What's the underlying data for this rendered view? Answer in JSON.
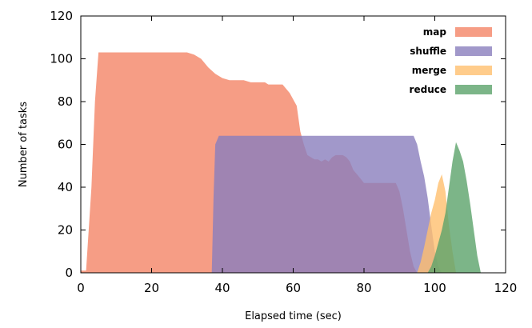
{
  "chart_data": {
    "type": "area",
    "title": "",
    "xlabel": "Elapsed time (sec)",
    "ylabel": "Number of tasks",
    "xlim": [
      0,
      120
    ],
    "ylim": [
      0,
      120
    ],
    "xticks": [
      0,
      20,
      40,
      60,
      80,
      100,
      120
    ],
    "yticks": [
      0,
      20,
      40,
      60,
      80,
      100,
      120
    ],
    "grid": false,
    "legend_position": "top-right",
    "series": [
      {
        "name": "map",
        "color": "#f48467",
        "points": [
          [
            0,
            1
          ],
          [
            1.5,
            1
          ],
          [
            3,
            40
          ],
          [
            4,
            80
          ],
          [
            5,
            103
          ],
          [
            30,
            103
          ],
          [
            32,
            102
          ],
          [
            34,
            100
          ],
          [
            36,
            96
          ],
          [
            38,
            93
          ],
          [
            40,
            91
          ],
          [
            42,
            90
          ],
          [
            46,
            90
          ],
          [
            48,
            89
          ],
          [
            52,
            89
          ],
          [
            53,
            88
          ],
          [
            57,
            88
          ],
          [
            58,
            86
          ],
          [
            59,
            84
          ],
          [
            60,
            81
          ],
          [
            61,
            78
          ],
          [
            62,
            66
          ],
          [
            63,
            60
          ],
          [
            64,
            55
          ],
          [
            65,
            54
          ],
          [
            66,
            53
          ],
          [
            67,
            53
          ],
          [
            68,
            52
          ],
          [
            69,
            53
          ],
          [
            70,
            52
          ],
          [
            71,
            54
          ],
          [
            72,
            55
          ],
          [
            74,
            55
          ],
          [
            75,
            54
          ],
          [
            76,
            52
          ],
          [
            77,
            48
          ],
          [
            78,
            46
          ],
          [
            79,
            44
          ],
          [
            80,
            42
          ],
          [
            89,
            42
          ],
          [
            90,
            38
          ],
          [
            91,
            30
          ],
          [
            92,
            20
          ],
          [
            93,
            10
          ],
          [
            94,
            3
          ],
          [
            95,
            0
          ]
        ]
      },
      {
        "name": "shuffle",
        "color": "#8a7ebd",
        "points": [
          [
            37,
            0
          ],
          [
            37.5,
            35
          ],
          [
            38,
            60
          ],
          [
            39,
            64
          ],
          [
            94,
            64
          ],
          [
            95,
            60
          ],
          [
            96,
            52
          ],
          [
            97,
            45
          ],
          [
            98,
            35
          ],
          [
            99,
            22
          ],
          [
            100,
            10
          ],
          [
            101,
            3
          ],
          [
            102,
            0
          ]
        ]
      },
      {
        "name": "merge",
        "color": "#ffbf6e",
        "points": [
          [
            95,
            0
          ],
          [
            96,
            5
          ],
          [
            97,
            12
          ],
          [
            98,
            20
          ],
          [
            99,
            28
          ],
          [
            100,
            34
          ],
          [
            101,
            42
          ],
          [
            102,
            46
          ],
          [
            103,
            38
          ],
          [
            104,
            22
          ],
          [
            105,
            10
          ],
          [
            106,
            0
          ]
        ]
      },
      {
        "name": "reduce",
        "color": "#5ba36a",
        "points": [
          [
            98,
            0
          ],
          [
            99,
            3
          ],
          [
            100,
            8
          ],
          [
            101,
            14
          ],
          [
            102,
            20
          ],
          [
            103,
            28
          ],
          [
            104,
            40
          ],
          [
            105,
            52
          ],
          [
            106,
            61
          ],
          [
            107,
            57
          ],
          [
            108,
            52
          ],
          [
            109,
            43
          ],
          [
            110,
            32
          ],
          [
            111,
            20
          ],
          [
            112,
            8
          ],
          [
            113,
            0
          ]
        ]
      }
    ]
  }
}
